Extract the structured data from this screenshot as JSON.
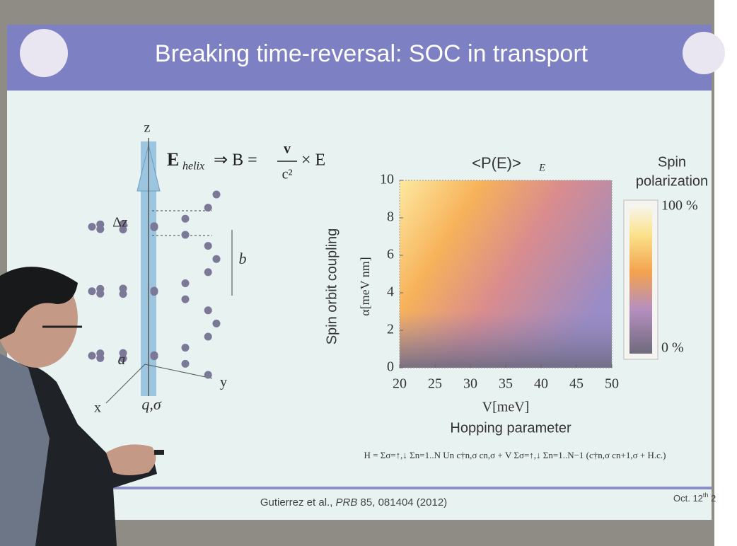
{
  "slide": {
    "title": "Breaking time-reversal: SOC in transport",
    "diagram": {
      "z": "z",
      "e": "E",
      "helix": "helix",
      "relation": "⇒ B =",
      "v": "v",
      "c2": "c²",
      "cross": "× E",
      "dz": "Δz",
      "b": "b",
      "a": "a",
      "x": "x",
      "y": "y",
      "q": "q,σ"
    },
    "heatmap": {
      "title": "<P(E)>",
      "title_sub": "E",
      "ylabel": "Spin orbit coupling",
      "yunit": "α[meV nm]",
      "xlabel": "V[meV]",
      "xsub": "Hopping parameter",
      "xticks": [
        20,
        25,
        30,
        35,
        40,
        45,
        50
      ],
      "yticks": [
        0,
        2,
        4,
        6,
        8,
        10
      ],
      "colorbar": {
        "title1": "Spin",
        "title2": "polarization",
        "max": "100 %",
        "min": "0 %"
      }
    },
    "formula": "H = Σσ=↑,↓ Σn=1..N Un c†n,σ cn,σ + V Σσ=↑,↓ Σn=1..N−1 (c†n,σ cn+1,σ + H.c.)",
    "citation_pre": "Gutierrez et al., ",
    "citation_journal": "PRB",
    "citation_post": " 85, 081404 (2012)",
    "date": "Oct. 12",
    "date_sup": "th",
    "date_post": " 2"
  }
}
